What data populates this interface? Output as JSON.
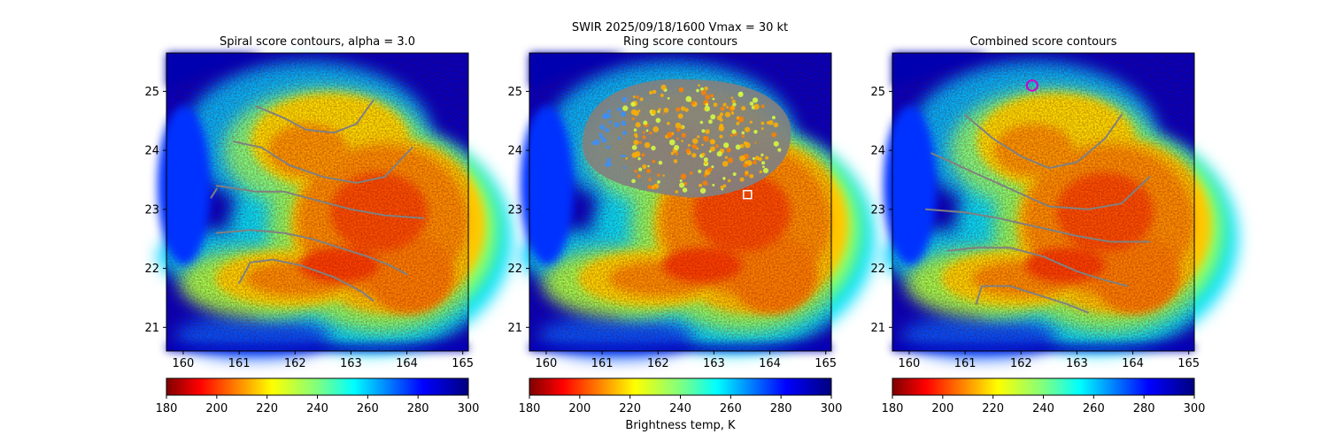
{
  "suptitle_line1": "SWIR  2025/09/18/1600    Vmax = 30 kt",
  "colorbar_label": "Brightness temp, K",
  "colormap": [
    "#7f0000",
    "#ff0000",
    "#ff7f00",
    "#ffff00",
    "#7fff7f",
    "#00ffff",
    "#007fff",
    "#0000ff",
    "#00007f"
  ],
  "contour_color": "#808080",
  "chart_data": [
    {
      "type": "heatmap",
      "title": "Spiral score contours, alpha =  3.0",
      "xlim": [
        159.7,
        165.1
      ],
      "ylim": [
        20.6,
        25.65
      ],
      "xticks": [
        "160",
        "161",
        "162",
        "163",
        "164",
        "165"
      ],
      "yticks": [
        "21",
        "22",
        "23",
        "24",
        "25"
      ],
      "colorbar_range": [
        180,
        300
      ],
      "colorbar_ticks": [
        "180",
        "200",
        "220",
        "240",
        "260",
        "280",
        "300"
      ],
      "contours": [
        [
          [
            161.3,
            24.75
          ],
          [
            161.8,
            24.55
          ],
          [
            162.2,
            24.35
          ],
          [
            162.7,
            24.3
          ],
          [
            163.1,
            24.45
          ],
          [
            163.4,
            24.85
          ]
        ],
        [
          [
            160.9,
            24.15
          ],
          [
            161.4,
            24.05
          ],
          [
            161.9,
            23.75
          ],
          [
            162.5,
            23.55
          ],
          [
            163.1,
            23.45
          ],
          [
            163.6,
            23.55
          ],
          [
            164.1,
            24.05
          ]
        ],
        [
          [
            160.6,
            23.4
          ],
          [
            161.3,
            23.3
          ],
          [
            161.8,
            23.3
          ],
          [
            162.4,
            23.15
          ],
          [
            163.0,
            23.0
          ],
          [
            163.6,
            22.9
          ],
          [
            164.3,
            22.85
          ]
        ],
        [
          [
            160.6,
            22.6
          ],
          [
            161.2,
            22.65
          ],
          [
            161.8,
            22.6
          ],
          [
            162.3,
            22.5
          ],
          [
            162.8,
            22.35
          ],
          [
            163.3,
            22.2
          ],
          [
            163.7,
            22.05
          ],
          [
            164.0,
            21.9
          ]
        ],
        [
          [
            160.6,
            23.35
          ],
          [
            160.5,
            23.2
          ]
        ],
        [
          [
            161.0,
            21.75
          ],
          [
            161.2,
            22.1
          ],
          [
            161.6,
            22.15
          ],
          [
            162.1,
            22.05
          ],
          [
            162.7,
            21.85
          ],
          [
            163.2,
            21.6
          ],
          [
            163.4,
            21.45
          ]
        ]
      ],
      "markers": []
    },
    {
      "type": "heatmap",
      "title": "Ring score contours",
      "xlim": [
        159.7,
        165.1
      ],
      "ylim": [
        20.6,
        25.65
      ],
      "xticks": [
        "160",
        "161",
        "162",
        "163",
        "164",
        "165"
      ],
      "yticks": [
        "21",
        "22",
        "23",
        "24",
        "25"
      ],
      "colorbar_range": [
        180,
        300
      ],
      "colorbar_ticks": [
        "180",
        "200",
        "220",
        "240",
        "260",
        "280",
        "300"
      ],
      "ring_region": {
        "center": [
          162.55,
          24.2
        ],
        "rx": 1.9,
        "ry": 1.0
      },
      "contours": [],
      "markers": [
        {
          "shape": "square",
          "color": "#ffffff",
          "x": 163.6,
          "y": 23.25
        }
      ]
    },
    {
      "type": "heatmap",
      "title": "Combined score contours",
      "xlim": [
        159.7,
        165.1
      ],
      "ylim": [
        20.6,
        25.65
      ],
      "xticks": [
        "160",
        "161",
        "162",
        "163",
        "164",
        "165"
      ],
      "yticks": [
        "21",
        "22",
        "23",
        "24",
        "25"
      ],
      "colorbar_range": [
        180,
        300
      ],
      "colorbar_ticks": [
        "180",
        "200",
        "220",
        "240",
        "260",
        "280",
        "300"
      ],
      "contours": [
        [
          [
            161.0,
            24.6
          ],
          [
            161.5,
            24.2
          ],
          [
            162.0,
            23.9
          ],
          [
            162.5,
            23.7
          ],
          [
            163.0,
            23.8
          ],
          [
            163.5,
            24.2
          ],
          [
            163.8,
            24.6
          ]
        ],
        [
          [
            160.4,
            23.95
          ],
          [
            161.1,
            23.65
          ],
          [
            161.8,
            23.35
          ],
          [
            162.5,
            23.05
          ],
          [
            163.2,
            23.0
          ],
          [
            163.8,
            23.1
          ],
          [
            164.3,
            23.55
          ]
        ],
        [
          [
            160.3,
            23.0
          ],
          [
            161.0,
            22.95
          ],
          [
            161.6,
            22.85
          ],
          [
            162.3,
            22.7
          ],
          [
            163.0,
            22.55
          ],
          [
            163.6,
            22.45
          ],
          [
            164.3,
            22.45
          ]
        ],
        [
          [
            160.7,
            22.3
          ],
          [
            161.2,
            22.35
          ],
          [
            161.8,
            22.35
          ],
          [
            162.4,
            22.2
          ],
          [
            163.0,
            21.95
          ],
          [
            163.5,
            21.8
          ],
          [
            163.9,
            21.7
          ]
        ],
        [
          [
            161.2,
            21.4
          ],
          [
            161.3,
            21.7
          ],
          [
            161.8,
            21.7
          ],
          [
            162.3,
            21.55
          ],
          [
            162.8,
            21.4
          ],
          [
            163.2,
            21.25
          ]
        ]
      ],
      "markers": [
        {
          "shape": "circle",
          "color": "#cc00cc",
          "x": 162.2,
          "y": 25.1
        }
      ]
    }
  ]
}
